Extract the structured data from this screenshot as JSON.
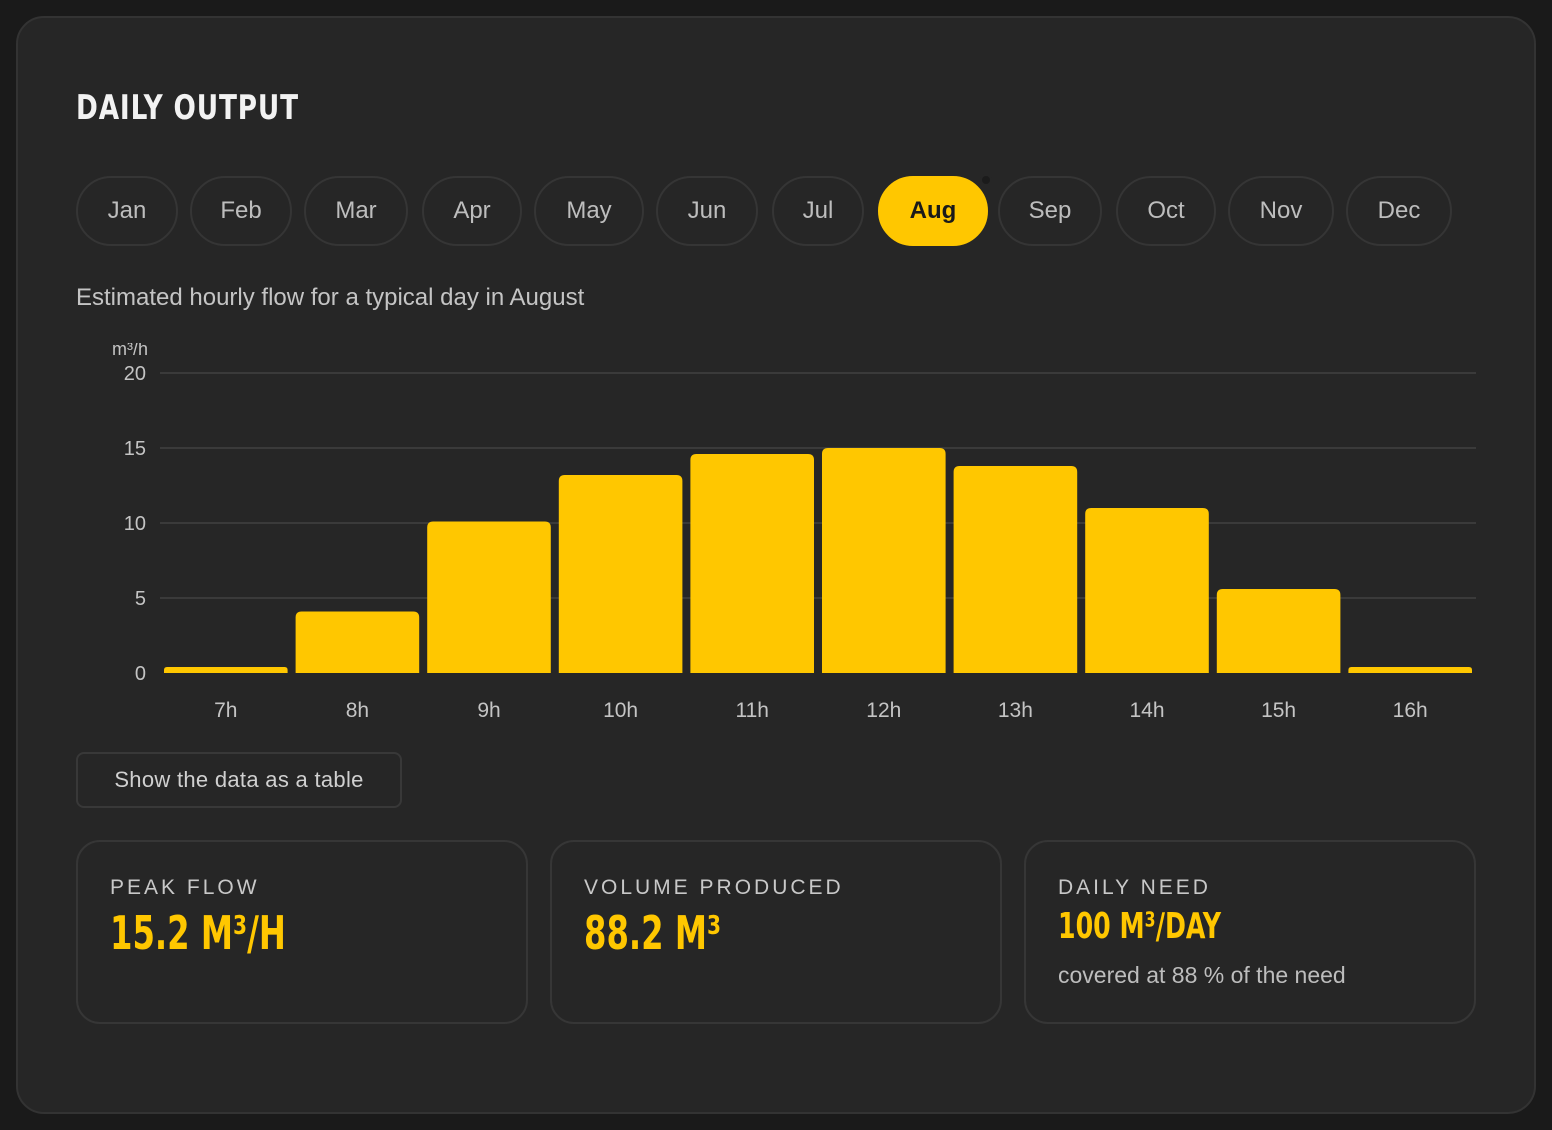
{
  "title": "DAILY OUTPUT",
  "months": [
    "Jan",
    "Feb",
    "Mar",
    "Apr",
    "May",
    "Jun",
    "Jul",
    "Aug",
    "Sep",
    "Oct",
    "Nov",
    "Dec"
  ],
  "selected_month": "Aug",
  "subtitle": "Estimated hourly flow for a typical day in August",
  "chart_data": {
    "type": "bar",
    "unit_label": "m³/h",
    "categories": [
      "7h",
      "8h",
      "9h",
      "10h",
      "11h",
      "12h",
      "13h",
      "14h",
      "15h",
      "16h"
    ],
    "values": [
      0.4,
      4.1,
      10.1,
      13.2,
      14.6,
      15.0,
      13.8,
      11.0,
      5.6,
      0.4
    ],
    "ylim": [
      0,
      20
    ],
    "yticks": [
      0,
      5,
      10,
      15,
      20
    ],
    "grid": true,
    "bar_color": "#ffc700"
  },
  "table_button_label": "Show the data as a table",
  "stats": {
    "peak": {
      "label": "PEAK FLOW",
      "value": "15.2 M³/H"
    },
    "volume": {
      "label": "VOLUME PRODUCED",
      "value": "88.2 M³"
    },
    "need": {
      "label": "DAILY NEED",
      "value": "100 M³/DAY",
      "note": "covered at 88 % of the need"
    }
  },
  "colors": {
    "accent": "#ffc700",
    "background": "#262626"
  }
}
